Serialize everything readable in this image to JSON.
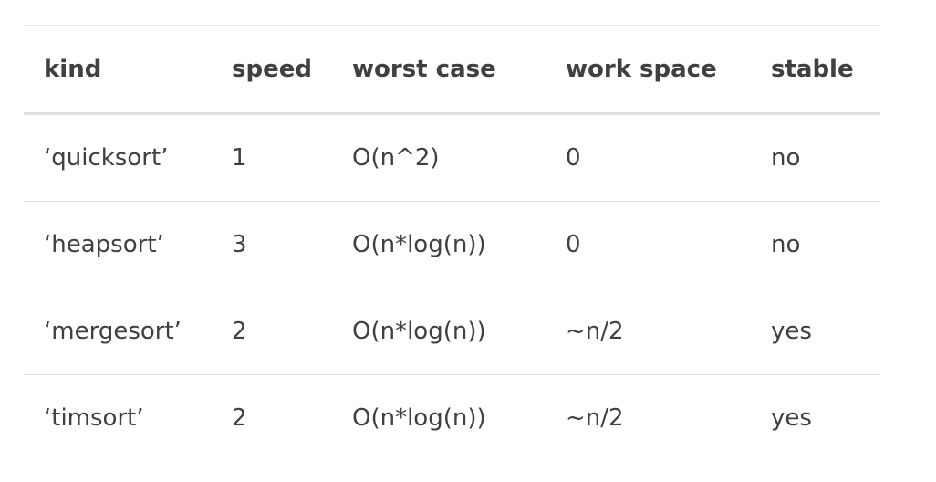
{
  "table": {
    "headers": [
      "kind",
      "speed",
      "worst case",
      "work space",
      "stable"
    ],
    "rows": [
      [
        "‘quicksort’",
        "1",
        "O(n^2)",
        "0",
        "no"
      ],
      [
        "‘heapsort’",
        "3",
        "O(n*log(n))",
        "0",
        "no"
      ],
      [
        "‘mergesort’",
        "2",
        "O(n*log(n))",
        "~n/2",
        "yes"
      ],
      [
        "‘timsort’",
        "2",
        "O(n*log(n))",
        "~n/2",
        "yes"
      ]
    ]
  }
}
